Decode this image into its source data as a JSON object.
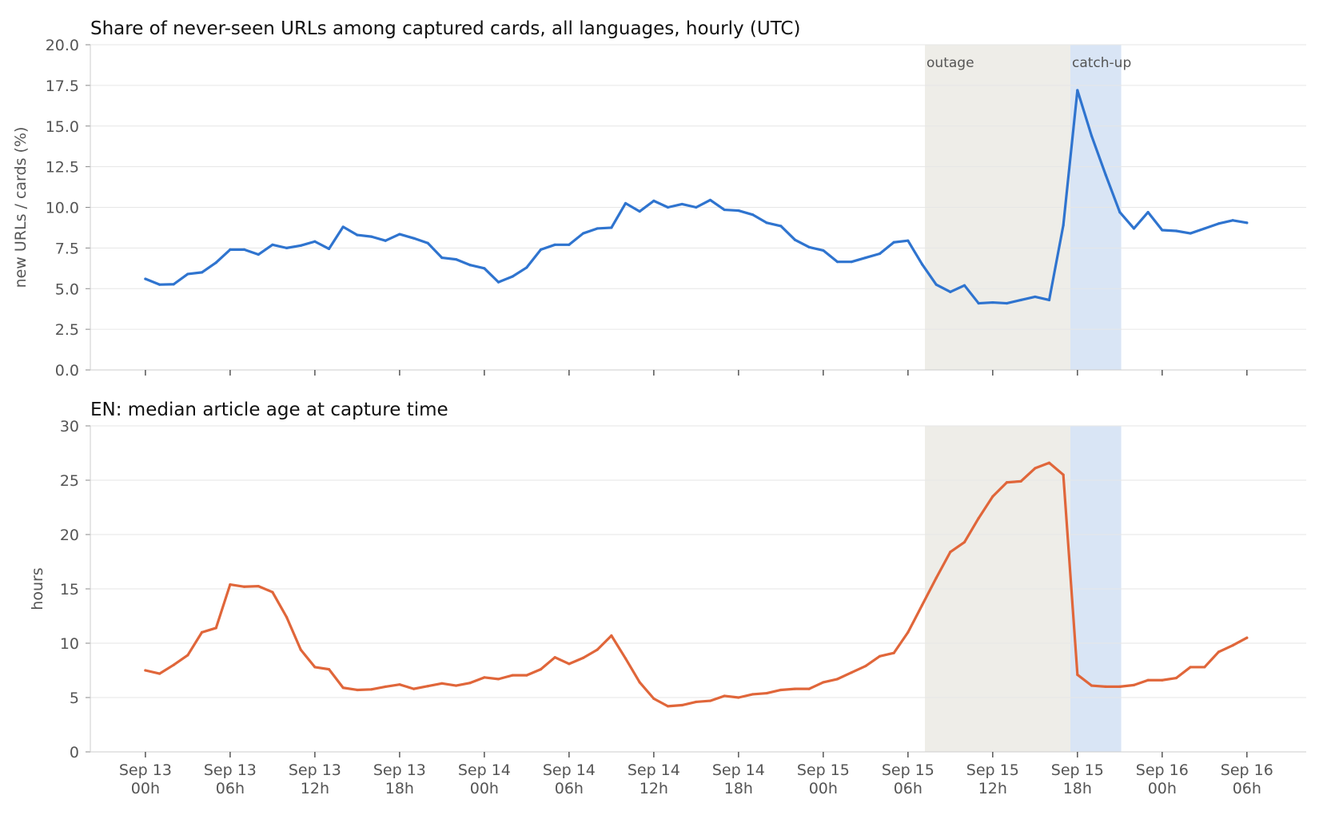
{
  "chart_data": [
    {
      "type": "line",
      "title": "Share of never-seen URLs among captured cards, all languages, hourly (UTC)",
      "xlabel": "",
      "ylabel": "new URLs / cards (%)",
      "ylim": [
        0,
        20
      ],
      "yticks": [
        "0.0",
        "2.5",
        "5.0",
        "7.5",
        "10.0",
        "12.5",
        "15.0",
        "17.5",
        "20.0"
      ],
      "grid": "horizontal",
      "x_ticks": [
        {
          "h": 0,
          "label": [
            "Sep 13",
            "00h"
          ]
        },
        {
          "h": 6,
          "label": [
            "Sep 13",
            "06h"
          ]
        },
        {
          "h": 12,
          "label": [
            "Sep 13",
            "12h"
          ]
        },
        {
          "h": 18,
          "label": [
            "Sep 13",
            "18h"
          ]
        },
        {
          "h": 24,
          "label": [
            "Sep 14",
            "00h"
          ]
        },
        {
          "h": 30,
          "label": [
            "Sep 14",
            "06h"
          ]
        },
        {
          "h": 36,
          "label": [
            "Sep 14",
            "12h"
          ]
        },
        {
          "h": 42,
          "label": [
            "Sep 14",
            "18h"
          ]
        },
        {
          "h": 48,
          "label": [
            "Sep 15",
            "00h"
          ]
        },
        {
          "h": 54,
          "label": [
            "Sep 15",
            "06h"
          ]
        },
        {
          "h": 60,
          "label": [
            "Sep 15",
            "12h"
          ]
        },
        {
          "h": 66,
          "label": [
            "Sep 15",
            "18h"
          ]
        },
        {
          "h": 72,
          "label": [
            "Sep 16",
            "00h"
          ]
        },
        {
          "h": 78,
          "label": [
            "Sep 16",
            "06h"
          ]
        }
      ],
      "xlim_hours": [
        -3.9,
        82.2
      ],
      "bands": [
        {
          "label": "outage",
          "from_h": 55.2,
          "to_h": 65.5,
          "color": "#eeede8"
        },
        {
          "label": "catch-up",
          "from_h": 65.5,
          "to_h": 69.1,
          "color": "#d9e5f5"
        }
      ],
      "series": [
        {
          "color": "#2f74cf",
          "x_hours": [
            0,
            1,
            2,
            3,
            4,
            5,
            6,
            7,
            8,
            9,
            10,
            11,
            12,
            13,
            14,
            15,
            16,
            17,
            18,
            19,
            20,
            21,
            22,
            23,
            24,
            25,
            26,
            27,
            28,
            29,
            30,
            31,
            32,
            33,
            34,
            35,
            36,
            37,
            38,
            39,
            40,
            41,
            42,
            43,
            44,
            45,
            46,
            47,
            48,
            49,
            50,
            51,
            52,
            53,
            54,
            55,
            56,
            57,
            58,
            59,
            60,
            61,
            62,
            63,
            64,
            65,
            66,
            67,
            68,
            69,
            70,
            71,
            72,
            73,
            74,
            75,
            76,
            77,
            78
          ],
          "values": [
            5.6,
            5.25,
            5.27,
            5.9,
            6.0,
            6.6,
            7.4,
            7.4,
            7.1,
            7.7,
            7.5,
            7.65,
            7.9,
            7.45,
            8.8,
            8.3,
            8.2,
            7.95,
            8.35,
            8.1,
            7.8,
            6.9,
            6.8,
            6.45,
            6.25,
            5.4,
            5.75,
            6.3,
            7.4,
            7.7,
            7.7,
            8.4,
            8.7,
            8.75,
            10.25,
            9.75,
            10.4,
            10.0,
            10.2,
            10.0,
            10.45,
            9.85,
            9.8,
            9.55,
            9.05,
            8.85,
            8.0,
            7.55,
            7.35,
            6.65,
            6.65,
            6.9,
            7.15,
            7.85,
            7.95,
            6.5,
            5.25,
            4.8,
            5.2,
            4.1,
            4.15,
            4.1,
            4.3,
            4.5,
            4.3,
            8.9,
            17.2,
            14.4,
            12.0,
            9.7,
            8.7,
            9.7,
            8.6,
            8.55,
            8.4,
            8.7,
            9.0,
            9.2,
            9.05
          ]
        }
      ]
    },
    {
      "type": "line",
      "title": "EN: median article age at capture time",
      "xlabel": "",
      "ylabel": "hours",
      "ylim": [
        0,
        30
      ],
      "yticks": [
        "0",
        "5",
        "10",
        "15",
        "20",
        "25",
        "30"
      ],
      "grid": "horizontal",
      "x_ticks": [
        {
          "h": 0,
          "label": [
            "Sep 13",
            "00h"
          ]
        },
        {
          "h": 6,
          "label": [
            "Sep 13",
            "06h"
          ]
        },
        {
          "h": 12,
          "label": [
            "Sep 13",
            "12h"
          ]
        },
        {
          "h": 18,
          "label": [
            "Sep 13",
            "18h"
          ]
        },
        {
          "h": 24,
          "label": [
            "Sep 14",
            "00h"
          ]
        },
        {
          "h": 30,
          "label": [
            "Sep 14",
            "06h"
          ]
        },
        {
          "h": 36,
          "label": [
            "Sep 14",
            "12h"
          ]
        },
        {
          "h": 42,
          "label": [
            "Sep 14",
            "18h"
          ]
        },
        {
          "h": 48,
          "label": [
            "Sep 15",
            "00h"
          ]
        },
        {
          "h": 54,
          "label": [
            "Sep 15",
            "06h"
          ]
        },
        {
          "h": 60,
          "label": [
            "Sep 15",
            "12h"
          ]
        },
        {
          "h": 66,
          "label": [
            "Sep 15",
            "18h"
          ]
        },
        {
          "h": 72,
          "label": [
            "Sep 16",
            "00h"
          ]
        },
        {
          "h": 78,
          "label": [
            "Sep 16",
            "06h"
          ]
        }
      ],
      "xlim_hours": [
        -3.9,
        82.2
      ],
      "bands": [
        {
          "label": "",
          "from_h": 55.2,
          "to_h": 65.5,
          "color": "#eeede8"
        },
        {
          "label": "",
          "from_h": 65.5,
          "to_h": 69.1,
          "color": "#d9e5f5"
        }
      ],
      "series": [
        {
          "color": "#e0663a",
          "x_hours": [
            0,
            1,
            2,
            3,
            4,
            5,
            6,
            7,
            8,
            9,
            10,
            11,
            12,
            13,
            14,
            15,
            16,
            17,
            18,
            19,
            20,
            21,
            22,
            23,
            24,
            25,
            26,
            27,
            28,
            29,
            30,
            31,
            32,
            33,
            34,
            35,
            36,
            37,
            38,
            39,
            40,
            41,
            42,
            43,
            44,
            45,
            46,
            47,
            48,
            49,
            50,
            51,
            52,
            53,
            54,
            55,
            56,
            57,
            58,
            59,
            60,
            61,
            62,
            63,
            64,
            65,
            66,
            67,
            68,
            69,
            70,
            71,
            72,
            73,
            74,
            75,
            76,
            77,
            78
          ],
          "values": [
            7.5,
            7.2,
            8.0,
            8.9,
            11.0,
            11.4,
            15.4,
            15.2,
            15.25,
            14.7,
            12.4,
            9.4,
            7.8,
            7.6,
            5.9,
            5.7,
            5.75,
            6.0,
            6.2,
            5.8,
            6.05,
            6.3,
            6.1,
            6.35,
            6.85,
            6.7,
            7.05,
            7.05,
            7.6,
            8.7,
            8.1,
            8.65,
            9.4,
            10.7,
            8.6,
            6.4,
            4.9,
            4.2,
            4.3,
            4.6,
            4.7,
            5.15,
            5.0,
            5.3,
            5.4,
            5.7,
            5.8,
            5.8,
            6.4,
            6.7,
            7.3,
            7.9,
            8.8,
            9.1,
            11.0,
            13.5,
            16.0,
            18.4,
            19.3,
            21.5,
            23.5,
            24.8,
            24.9,
            26.1,
            26.6,
            25.5,
            7.1,
            6.1,
            6.0,
            6.0,
            6.15,
            6.6,
            6.6,
            6.8,
            7.8,
            7.8,
            9.2,
            9.8,
            10.5
          ]
        }
      ]
    }
  ]
}
